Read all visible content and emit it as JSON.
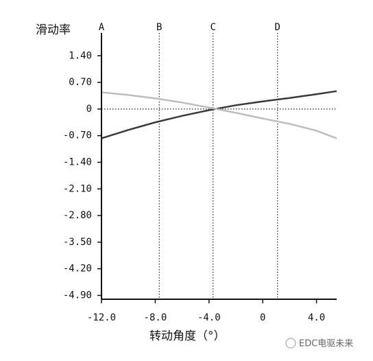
{
  "chart_data": {
    "type": "line",
    "y_label": "滑动率",
    "x_label": "转动角度（°）",
    "watermark": "EDC电驱未来",
    "x": [
      -12,
      -10,
      -8,
      -6,
      -4,
      -2,
      0,
      2,
      4,
      5.5
    ],
    "series": [
      {
        "color": "#3a3a3a",
        "values": [
          -0.77,
          -0.55,
          -0.35,
          -0.18,
          -0.03,
          0.1,
          0.2,
          0.29,
          0.39,
          0.47
        ]
      },
      {
        "color": "#bdbdbd",
        "values": [
          0.44,
          0.37,
          0.28,
          0.17,
          0.04,
          -0.1,
          -0.25,
          -0.39,
          -0.57,
          -0.77
        ]
      }
    ],
    "ref_lines": [
      {
        "label": "A",
        "x": -12
      },
      {
        "label": "B",
        "x": -7.7
      },
      {
        "label": "C",
        "x": -3.7
      },
      {
        "label": "D",
        "x": 1.1
      }
    ],
    "xlim": [
      -12,
      5.5
    ],
    "ylim": [
      -5.0,
      2.0
    ],
    "xticks": [
      {
        "value": -12,
        "label": "-12.0"
      },
      {
        "value": -8,
        "label": "-8.0"
      },
      {
        "value": -4,
        "label": "-4.0"
      },
      0,
      {
        "value": 4,
        "label": "4.0"
      }
    ],
    "yticks": [
      {
        "value": 1.4,
        "label": "1.40"
      },
      {
        "value": 0.7,
        "label": "0.70"
      },
      0,
      {
        "value": -0.7,
        "label": "-0.70"
      },
      {
        "value": -1.4,
        "label": "-1.40"
      },
      {
        "value": -2.1,
        "label": "-2.10"
      },
      {
        "value": -2.8,
        "label": "-2.80"
      },
      {
        "value": -3.5,
        "label": "-3.50"
      },
      {
        "value": -4.2,
        "label": "-4.20"
      },
      {
        "value": -4.9,
        "label": "-4.90"
      }
    ]
  }
}
